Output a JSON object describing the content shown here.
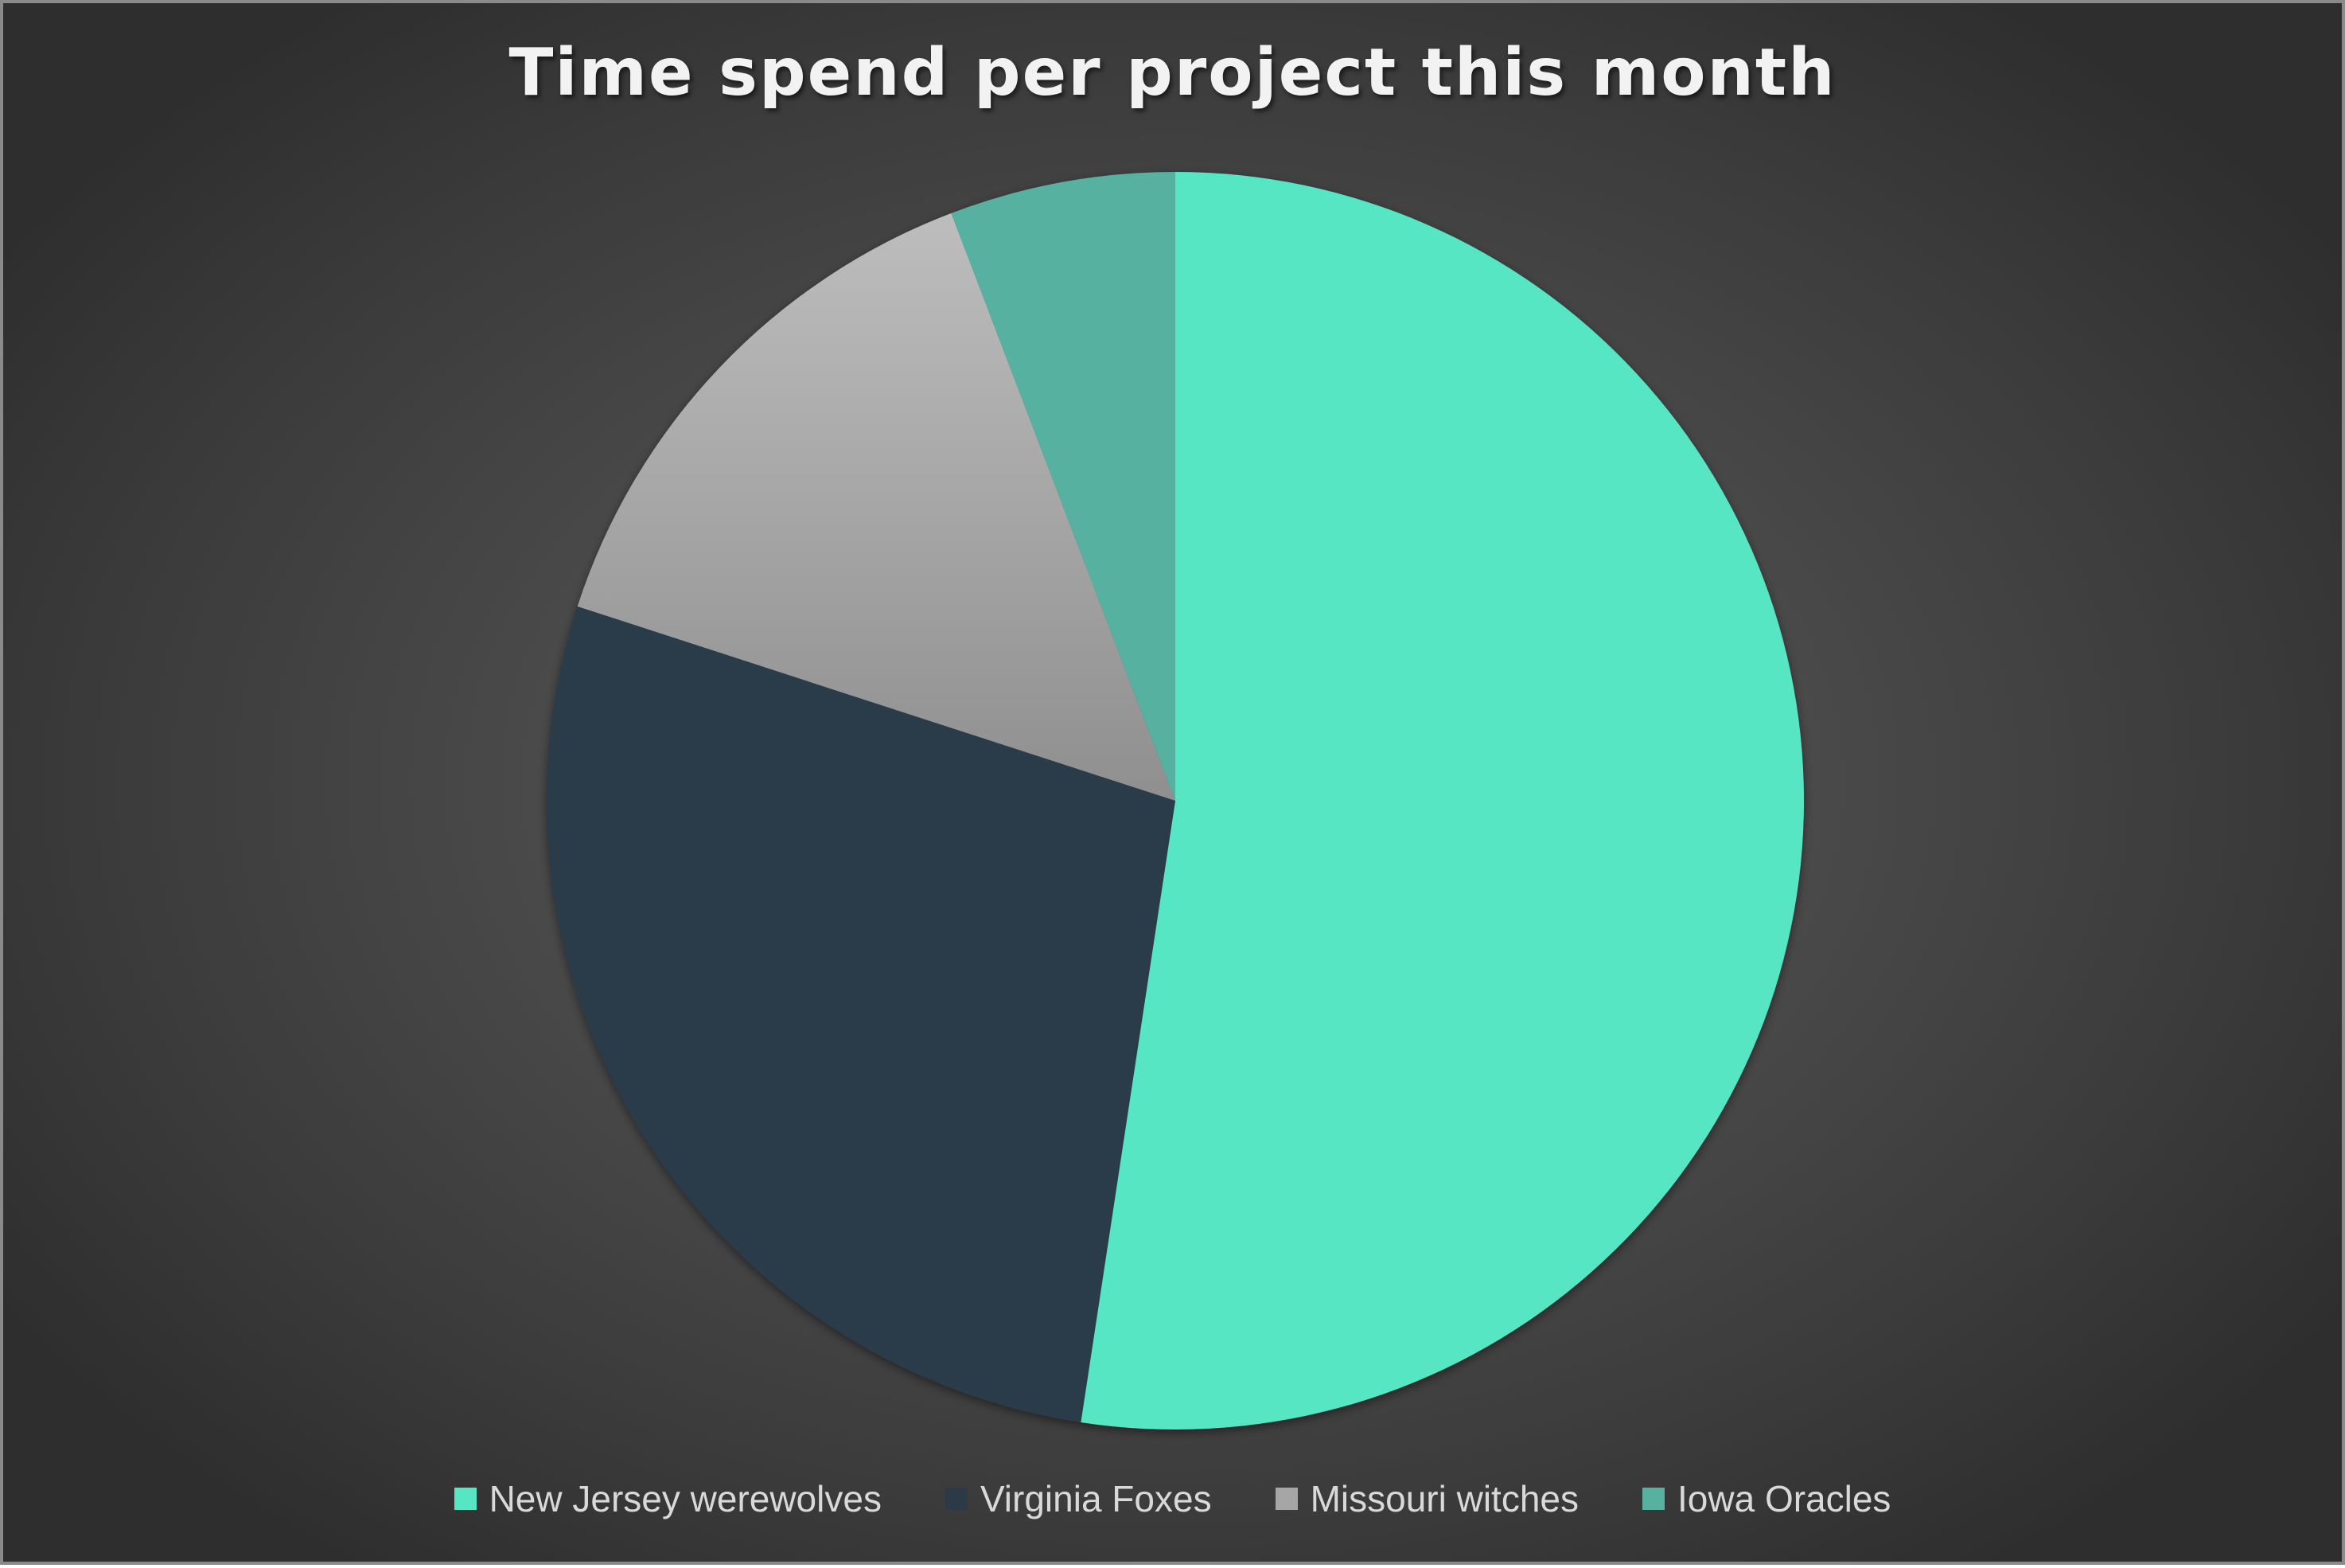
{
  "chart_data": {
    "type": "pie",
    "title": "Time spend per project this month",
    "slices": [
      {
        "label": "New Jersey werewolves",
        "value": 52.4,
        "color": "#57e6c3"
      },
      {
        "label": "Virginia Foxes",
        "value": 27.6,
        "color": "#2c3a48"
      },
      {
        "label": "Missouri witches",
        "value": 14.2,
        "color": "#a6a6a6"
      },
      {
        "label": "Iowa Oracles",
        "value": 5.8,
        "color": "#57b1a0"
      }
    ],
    "legend_position": "bottom"
  }
}
